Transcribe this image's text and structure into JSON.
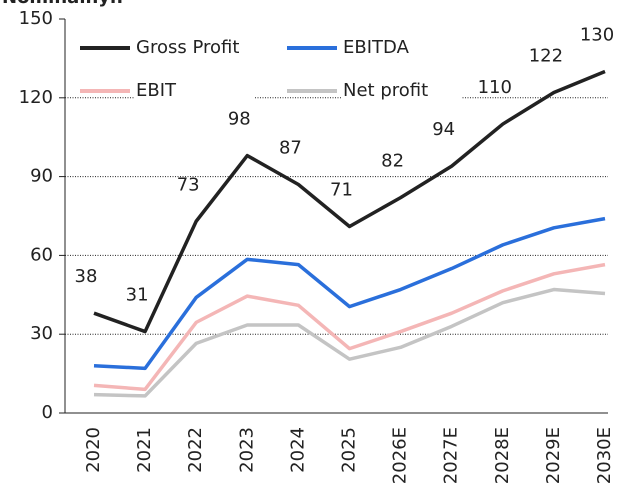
{
  "chart_data": {
    "type": "line",
    "title": "Nominalnyh",
    "categories": [
      "2020",
      "2021",
      "2022",
      "2023",
      "2024",
      "2025",
      "2026E",
      "2027E",
      "2028E",
      "2029E",
      "2030E"
    ],
    "series": [
      {
        "name": "Gross Profit",
        "color": "#222222",
        "values": [
          38,
          31,
          73,
          98,
          87,
          71,
          82,
          94,
          110,
          122,
          130
        ],
        "labels": true
      },
      {
        "name": "EBITDA",
        "color": "#2a6fdb",
        "values": [
          18,
          17,
          44,
          58.5,
          56.5,
          40.5,
          47,
          55,
          64,
          70.5,
          74
        ]
      },
      {
        "name": "EBIT",
        "color": "#f4b6b6",
        "values": [
          10.5,
          9,
          34.5,
          44.5,
          41,
          24.5,
          31,
          38,
          46.5,
          53,
          56.5
        ]
      },
      {
        "name": "Net profit",
        "color": "#c4c4c4",
        "values": [
          7,
          6.5,
          26.5,
          33.5,
          33.5,
          20.5,
          25,
          33,
          42,
          47,
          45.5
        ]
      }
    ],
    "ylim": [
      0,
      150
    ],
    "yticks": [
      0,
      30,
      60,
      90,
      120,
      150
    ],
    "grid": true
  }
}
